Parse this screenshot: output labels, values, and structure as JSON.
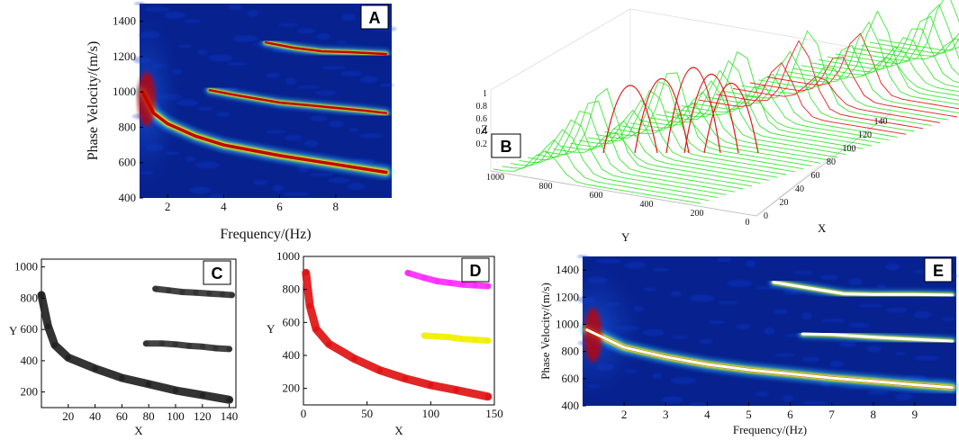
{
  "figure": {
    "colors": {
      "dark_blue": "#07218f",
      "mid_blue": "#0c3ad6",
      "ridge_red": "#c40000",
      "ridge_yellow": "#f4f000",
      "green": "#22e01a",
      "red": "#e01414",
      "magenta": "#ff2cff",
      "yellow": "#f0f000",
      "white_line": "#ffffff",
      "black": "#000000"
    },
    "icons": [
      "panel-label-box"
    ]
  },
  "chart_data": [
    {
      "panel": "A",
      "type": "heatmap",
      "label": "A",
      "xlabel": "Frequency/(Hz)",
      "ylabel": "Phase Velocity/(m/s)",
      "xlim": [
        1,
        10
      ],
      "ylim": [
        400,
        1500
      ],
      "xticks": [
        "2",
        "4",
        "6",
        "8"
      ],
      "yticks": [
        "400",
        "600",
        "800",
        "1000",
        "1200",
        "1400"
      ],
      "series": [
        {
          "name": "fundamental mode",
          "x": [
            1.1,
            1.5,
            2,
            3,
            4,
            5,
            6,
            7,
            8,
            9,
            9.8
          ],
          "y": [
            1000,
            880,
            820,
            750,
            700,
            670,
            640,
            615,
            590,
            565,
            545
          ]
        },
        {
          "name": "higher mode 1",
          "x": [
            3.5,
            4.5,
            6,
            7,
            8,
            9,
            9.8
          ],
          "y": [
            1010,
            980,
            940,
            925,
            910,
            895,
            880
          ]
        },
        {
          "name": "higher mode 2",
          "x": [
            5.5,
            6.5,
            7.5,
            8.5,
            9.8
          ],
          "y": [
            1280,
            1250,
            1230,
            1225,
            1215
          ]
        }
      ]
    },
    {
      "panel": "B",
      "type": "surface",
      "label": "B",
      "xlabel": "X",
      "ylabel": "Y",
      "zlabel": "Z",
      "xticks": [
        "0",
        "20",
        "40",
        "60",
        "80",
        "100",
        "120",
        "140"
      ],
      "yticks": [
        "1000",
        "800",
        "600",
        "400",
        "200",
        "0"
      ],
      "zticks": [
        "0.2",
        "0.4",
        "0.6",
        "0.8",
        "1"
      ]
    },
    {
      "panel": "C",
      "type": "scatter",
      "label": "C",
      "xlabel": "X",
      "ylabel": "Y",
      "xlim": [
        0,
        145
      ],
      "ylim": [
        100,
        1050
      ],
      "xticks": [
        "20",
        "40",
        "60",
        "80",
        "100",
        "120",
        "140"
      ],
      "yticks": [
        "200",
        "400",
        "600",
        "800",
        "1000"
      ],
      "series": [
        {
          "name": "fundamental mode points",
          "x": [
            0,
            5,
            10,
            20,
            40,
            60,
            80,
            100,
            120,
            140
          ],
          "y": [
            820,
            620,
            500,
            420,
            350,
            290,
            250,
            210,
            180,
            150
          ]
        },
        {
          "name": "higher mode points 1",
          "x": [
            78,
            90,
            100,
            110,
            120,
            130,
            140
          ],
          "y": [
            510,
            510,
            505,
            495,
            490,
            480,
            475
          ]
        },
        {
          "name": "higher mode points 2",
          "x": [
            85,
            95,
            105,
            115,
            125,
            135,
            142
          ],
          "y": [
            860,
            850,
            840,
            835,
            830,
            825,
            820
          ]
        }
      ]
    },
    {
      "panel": "D",
      "type": "scatter",
      "label": "D",
      "xlabel": "X",
      "ylabel": "Y",
      "xlim": [
        0,
        150
      ],
      "ylim": [
        100,
        1000
      ],
      "xticks": [
        "0",
        "50",
        "100",
        "150"
      ],
      "yticks": [
        "200",
        "400",
        "600",
        "800",
        "1000"
      ],
      "series": [
        {
          "name": "cluster red",
          "x": [
            2,
            5,
            10,
            20,
            40,
            60,
            80,
            100,
            120,
            145
          ],
          "y": [
            900,
            700,
            560,
            470,
            380,
            310,
            260,
            220,
            190,
            150
          ],
          "color": "#e01414"
        },
        {
          "name": "cluster yellow",
          "x": [
            95,
            105,
            115,
            125,
            135,
            145
          ],
          "y": [
            520,
            515,
            510,
            500,
            495,
            490
          ],
          "color": "#f0f000"
        },
        {
          "name": "cluster magenta",
          "x": [
            82,
            95,
            105,
            115,
            125,
            135,
            145
          ],
          "y": [
            900,
            870,
            850,
            840,
            830,
            825,
            820
          ],
          "color": "#ff2cff"
        }
      ]
    },
    {
      "panel": "E",
      "type": "heatmap",
      "label": "E",
      "xlabel": "Frequency/(Hz)",
      "ylabel": "Phase Velocity/(m/s)",
      "xlim": [
        1,
        10
      ],
      "ylim": [
        400,
        1500
      ],
      "xticks": [
        "2",
        "3",
        "4",
        "5",
        "6",
        "7",
        "8",
        "9"
      ],
      "yticks": [
        "400",
        "600",
        "800",
        "1000",
        "1200",
        "1400"
      ],
      "series": [
        {
          "name": "picked fundamental",
          "x": [
            1.1,
            2,
            3,
            4,
            5,
            6,
            7,
            8,
            9,
            9.9
          ],
          "y": [
            960,
            830,
            760,
            705,
            665,
            635,
            605,
            580,
            555,
            535
          ]
        },
        {
          "name": "picked higher 1",
          "x": [
            6.3,
            7,
            8,
            9,
            9.9
          ],
          "y": [
            930,
            925,
            905,
            890,
            875
          ]
        },
        {
          "name": "picked higher 2",
          "x": [
            5.6,
            6.5,
            7.3,
            8,
            9,
            9.9
          ],
          "y": [
            1310,
            1265,
            1225,
            1220,
            1220,
            1215
          ]
        }
      ]
    }
  ]
}
